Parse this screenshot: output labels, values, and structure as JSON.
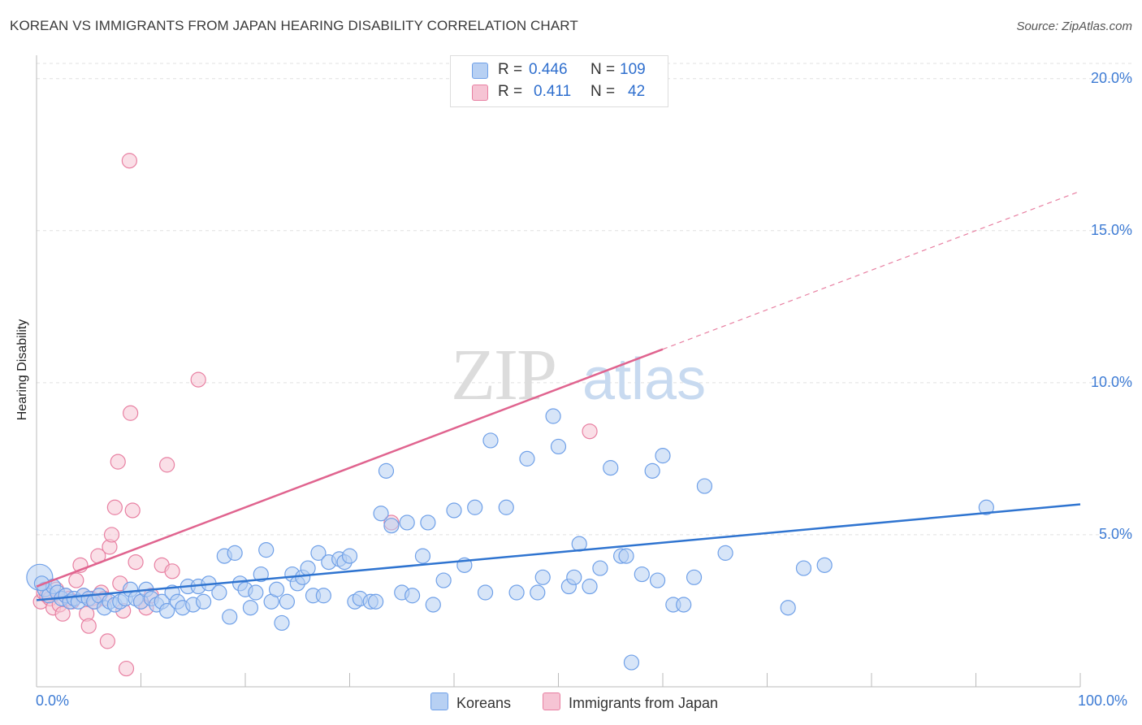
{
  "title": "KOREAN VS IMMIGRANTS FROM JAPAN HEARING DISABILITY CORRELATION CHART",
  "source": "Source: ZipAtlas.com",
  "legend": {
    "r_label": "R =",
    "n_label": "N =",
    "series": [
      {
        "name": "Koreans",
        "r": "0.446",
        "n": "109",
        "color": "#6fa0e8",
        "fill": "#b7d0f3"
      },
      {
        "name": "Immigrants from Japan",
        "r": "0.411",
        "n": "42",
        "color": "#e880a2",
        "fill": "#f6c4d4"
      }
    ]
  },
  "chart_data": {
    "type": "scatter",
    "title": "KOREAN VS IMMIGRANTS FROM JAPAN HEARING DISABILITY CORRELATION CHART",
    "ylabel": "Hearing Disability",
    "xlabel": "",
    "xlim": [
      0,
      100
    ],
    "ylim": [
      0,
      20.5
    ],
    "x_tick_labels": [
      "0.0%",
      "100.0%"
    ],
    "y_ticks": [
      5,
      10,
      15,
      20
    ],
    "y_tick_labels": [
      "5.0%",
      "10.0%",
      "15.0%",
      "20.0%"
    ],
    "grid": true,
    "watermark": "ZIPatlas",
    "series": [
      {
        "name": "Koreans",
        "color": "#6fa0e8",
        "trend": {
          "x0": 0,
          "y0": 2.85,
          "x1": 100,
          "y1": 6.0
        },
        "points": [
          [
            0.3,
            3.6
          ],
          [
            0.8,
            3.2
          ],
          [
            1.2,
            3.0
          ],
          [
            1.6,
            3.3
          ],
          [
            2.0,
            3.1
          ],
          [
            2.4,
            2.9
          ],
          [
            2.8,
            3.0
          ],
          [
            3.2,
            2.8
          ],
          [
            3.6,
            2.9
          ],
          [
            4.0,
            2.8
          ],
          [
            4.5,
            3.0
          ],
          [
            5.0,
            2.9
          ],
          [
            5.5,
            2.8
          ],
          [
            6.0,
            3.0
          ],
          [
            6.5,
            2.6
          ],
          [
            7.0,
            2.8
          ],
          [
            7.5,
            2.7
          ],
          [
            8.0,
            2.8
          ],
          [
            8.5,
            2.9
          ],
          [
            9.0,
            3.2
          ],
          [
            9.5,
            2.9
          ],
          [
            10.0,
            2.8
          ],
          [
            10.5,
            3.2
          ],
          [
            11.0,
            2.9
          ],
          [
            11.5,
            2.7
          ],
          [
            12.0,
            2.8
          ],
          [
            12.5,
            2.5
          ],
          [
            13.0,
            3.1
          ],
          [
            13.5,
            2.8
          ],
          [
            14.0,
            2.6
          ],
          [
            14.5,
            3.3
          ],
          [
            15.0,
            2.7
          ],
          [
            15.5,
            3.3
          ],
          [
            16.0,
            2.8
          ],
          [
            16.5,
            3.4
          ],
          [
            17.5,
            3.1
          ],
          [
            18.0,
            4.3
          ],
          [
            18.5,
            2.3
          ],
          [
            19.0,
            4.4
          ],
          [
            19.5,
            3.4
          ],
          [
            20.0,
            3.2
          ],
          [
            20.5,
            2.6
          ],
          [
            21.0,
            3.1
          ],
          [
            21.5,
            3.7
          ],
          [
            22.0,
            4.5
          ],
          [
            22.5,
            2.8
          ],
          [
            23.0,
            3.2
          ],
          [
            23.5,
            2.1
          ],
          [
            24.0,
            2.8
          ],
          [
            24.5,
            3.7
          ],
          [
            25.0,
            3.4
          ],
          [
            25.5,
            3.6
          ],
          [
            26.0,
            3.9
          ],
          [
            26.5,
            3.0
          ],
          [
            27.0,
            4.4
          ],
          [
            27.5,
            3.0
          ],
          [
            28.0,
            4.1
          ],
          [
            29.0,
            4.2
          ],
          [
            29.5,
            4.1
          ],
          [
            30.0,
            4.3
          ],
          [
            30.5,
            2.8
          ],
          [
            31.0,
            2.9
          ],
          [
            32.0,
            2.8
          ],
          [
            32.5,
            2.8
          ],
          [
            33.0,
            5.7
          ],
          [
            33.5,
            7.1
          ],
          [
            34.0,
            5.3
          ],
          [
            35.0,
            3.1
          ],
          [
            35.5,
            5.4
          ],
          [
            36.0,
            3.0
          ],
          [
            37.0,
            4.3
          ],
          [
            37.5,
            5.4
          ],
          [
            38.0,
            2.7
          ],
          [
            39.0,
            3.5
          ],
          [
            40.0,
            5.8
          ],
          [
            41.0,
            4.0
          ],
          [
            42.0,
            5.9
          ],
          [
            43.0,
            3.1
          ],
          [
            43.5,
            8.1
          ],
          [
            45.0,
            5.9
          ],
          [
            46.0,
            3.1
          ],
          [
            47.0,
            7.5
          ],
          [
            48.0,
            3.1
          ],
          [
            48.5,
            3.6
          ],
          [
            49.5,
            8.9
          ],
          [
            50.0,
            7.9
          ],
          [
            51.0,
            3.3
          ],
          [
            51.5,
            3.6
          ],
          [
            52.0,
            4.7
          ],
          [
            53.0,
            3.3
          ],
          [
            54.0,
            3.9
          ],
          [
            55.0,
            7.2
          ],
          [
            56.0,
            4.3
          ],
          [
            56.5,
            4.3
          ],
          [
            57.0,
            0.8
          ],
          [
            58.0,
            3.7
          ],
          [
            59.0,
            7.1
          ],
          [
            59.5,
            3.5
          ],
          [
            60.0,
            7.6
          ],
          [
            61.0,
            2.7
          ],
          [
            62.0,
            2.7
          ],
          [
            63.0,
            3.6
          ],
          [
            64.0,
            6.6
          ],
          [
            66.0,
            4.4
          ],
          [
            72.0,
            2.6
          ],
          [
            73.5,
            3.9
          ],
          [
            75.5,
            4.0
          ],
          [
            91.0,
            5.9
          ],
          [
            0.5,
            3.4
          ]
        ]
      },
      {
        "name": "Immigrants from Japan",
        "color": "#e880a2",
        "trend": {
          "x0": 0,
          "y0": 3.3,
          "x1": 60,
          "y1": 11.1,
          "dash_to_x": 100,
          "dash_to_y": 16.3
        },
        "points": [
          [
            0.4,
            2.8
          ],
          [
            0.7,
            3.1
          ],
          [
            1.0,
            3.0
          ],
          [
            1.3,
            2.9
          ],
          [
            1.6,
            2.6
          ],
          [
            1.9,
            3.2
          ],
          [
            2.2,
            2.7
          ],
          [
            2.5,
            2.4
          ],
          [
            2.8,
            3.0
          ],
          [
            3.1,
            2.9
          ],
          [
            3.4,
            2.8
          ],
          [
            3.8,
            3.5
          ],
          [
            4.2,
            4.0
          ],
          [
            4.5,
            3.0
          ],
          [
            4.8,
            2.4
          ],
          [
            5.0,
            2.0
          ],
          [
            5.3,
            2.9
          ],
          [
            5.6,
            2.8
          ],
          [
            5.9,
            4.3
          ],
          [
            6.2,
            3.1
          ],
          [
            6.5,
            2.9
          ],
          [
            6.8,
            1.5
          ],
          [
            7.0,
            4.6
          ],
          [
            7.2,
            5.0
          ],
          [
            7.5,
            5.9
          ],
          [
            7.8,
            7.4
          ],
          [
            8.0,
            3.4
          ],
          [
            8.3,
            2.5
          ],
          [
            8.6,
            0.6
          ],
          [
            8.9,
            17.3
          ],
          [
            9.2,
            5.8
          ],
          [
            9.5,
            4.1
          ],
          [
            10.0,
            2.8
          ],
          [
            10.5,
            2.6
          ],
          [
            11.0,
            3.0
          ],
          [
            9.0,
            9.0
          ],
          [
            12.0,
            4.0
          ],
          [
            13.0,
            3.8
          ],
          [
            12.5,
            7.3
          ],
          [
            15.5,
            10.1
          ],
          [
            34.0,
            5.4
          ],
          [
            53.0,
            8.4
          ]
        ]
      }
    ]
  }
}
